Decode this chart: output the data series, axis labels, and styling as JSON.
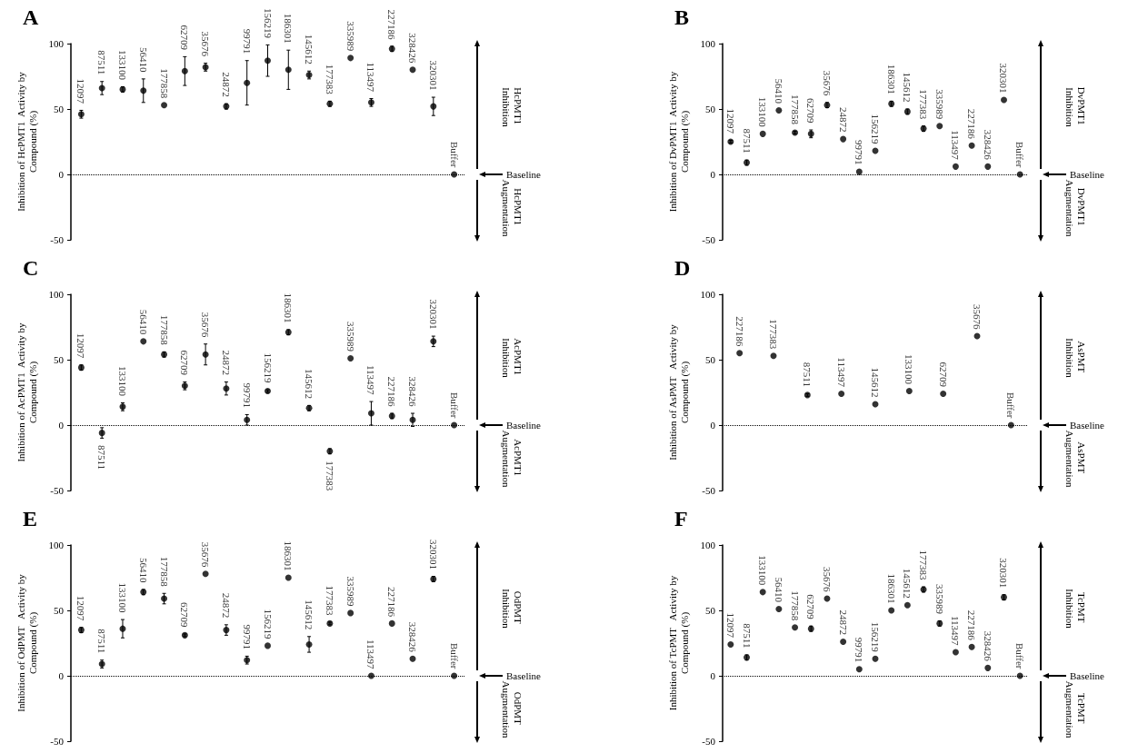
{
  "chart_data": [
    {
      "type": "scatter",
      "title": "A",
      "ylabel": "Inhibition of HcPMT1  Activity by Compound (%)",
      "color": "#000000",
      "marker": "circle",
      "tick_labels": "y",
      "categories": [
        "12097",
        "87511",
        "133100",
        "56410",
        "177858",
        "62709",
        "35676",
        "24872",
        "99791",
        "156219",
        "186301",
        "145612",
        "177383",
        "335989",
        "113497",
        "227186",
        "328426",
        "320301",
        "Buffer"
      ],
      "values": [
        46,
        66,
        65,
        64,
        53,
        79,
        82,
        52,
        70,
        87,
        80,
        76,
        54,
        89,
        55,
        96,
        80,
        52,
        0
      ],
      "errors": [
        3,
        5,
        2,
        9,
        null,
        11,
        3,
        2,
        17,
        12,
        15,
        3,
        2,
        null,
        3,
        2,
        null,
        7,
        null
      ],
      "ylim": [
        -50,
        100
      ],
      "yticks": [
        -50,
        0,
        50,
        100
      ],
      "ref_lines": [
        {
          "axis": "y",
          "value": 0,
          "line_style": "dotted",
          "color": "#000000"
        }
      ],
      "annotations": [
        "Baseline",
        "HcPMT1 Inhibition",
        "HcPMT1 Augmentation"
      ]
    },
    {
      "type": "scatter",
      "title": "B",
      "ylabel": "Inhibition of DvPMT1  Activity by Compound (%)",
      "color": "#000000",
      "marker": "circle",
      "tick_labels": "y",
      "categories": [
        "12097",
        "87511",
        "133100",
        "56410",
        "177858",
        "62709",
        "35676",
        "24872",
        "99791",
        "156219",
        "186301",
        "145612",
        "177383",
        "335989",
        "113497",
        "227186",
        "328426",
        "320301",
        "Buffer"
      ],
      "values": [
        25,
        9,
        31,
        49,
        32,
        31,
        53,
        27,
        2,
        18,
        54,
        48,
        35,
        37,
        6,
        22,
        6,
        57,
        0
      ],
      "errors": [
        1,
        2,
        null,
        null,
        1,
        3,
        2,
        null,
        null,
        null,
        2,
        2,
        2,
        null,
        null,
        null,
        null,
        null,
        null
      ],
      "ylim": [
        -50,
        100
      ],
      "yticks": [
        -50,
        0,
        50,
        100
      ],
      "ref_lines": [
        {
          "axis": "y",
          "value": 0,
          "line_style": "dotted",
          "color": "#000000"
        }
      ],
      "annotations": [
        "Baseline",
        "DvPMT1 Inhibition",
        "DvPMT1 Augmentation"
      ]
    },
    {
      "type": "scatter",
      "title": "C",
      "ylabel": "Inhibition of AcPMT1  Activity by Compound (%)",
      "color": "#000000",
      "marker": "circle",
      "tick_labels": "y",
      "categories": [
        "12097",
        "87511",
        "133100",
        "56410",
        "177858",
        "62709",
        "35676",
        "24872",
        "99791",
        "156219",
        "186301",
        "145612",
        "177383",
        "335989",
        "113497",
        "227186",
        "328426",
        "320301",
        "Buffer"
      ],
      "values": [
        44,
        -6,
        14,
        64,
        54,
        30,
        54,
        28,
        4,
        26,
        71,
        13,
        -20,
        51,
        9,
        7,
        4,
        64,
        0
      ],
      "errors": [
        2,
        4,
        3,
        null,
        2,
        3,
        8,
        5,
        4,
        1,
        2,
        2,
        2,
        null,
        9,
        2,
        5,
        4,
        null
      ],
      "ylim": [
        -50,
        100
      ],
      "yticks": [
        -50,
        0,
        50,
        100
      ],
      "ref_lines": [
        {
          "axis": "y",
          "value": 0,
          "line_style": "dotted",
          "color": "#000000"
        }
      ],
      "annotations": [
        "Baseline",
        "AcPMT1 Inhibition",
        "AcPMT1 Augmentation"
      ]
    },
    {
      "type": "scatter",
      "title": "D",
      "ylabel": "Inhibition of AsPMT   Activity by Compound (%)",
      "color": "#000000",
      "marker": "circle",
      "tick_labels": "y",
      "categories": [
        "227186",
        "177383",
        "87511",
        "113497",
        "145612",
        "133100",
        "62709",
        "35676",
        "Buffer"
      ],
      "values": [
        55,
        53,
        23,
        24,
        16,
        26,
        24,
        68,
        0
      ],
      "errors": [
        null,
        null,
        1,
        null,
        null,
        null,
        null,
        null,
        null
      ],
      "ylim": [
        -50,
        100
      ],
      "yticks": [
        -50,
        0,
        50,
        100
      ],
      "ref_lines": [
        {
          "axis": "y",
          "value": 0,
          "line_style": "dotted",
          "color": "#000000"
        }
      ],
      "annotations": [
        "Baseline",
        "AsPMT Inhibition",
        "AsPMT Augmentation"
      ]
    },
    {
      "type": "scatter",
      "title": "E",
      "ylabel": "Inhibition of OdPMT   Activity by Compound (%)",
      "color": "#000000",
      "marker": "circle",
      "tick_labels": "y",
      "categories": [
        "12097",
        "87511",
        "133100",
        "56410",
        "177858",
        "62709",
        "35676",
        "24872",
        "99791",
        "156219",
        "186301",
        "145612",
        "177383",
        "335989",
        "113497",
        "227186",
        "328426",
        "320301",
        "Buffer"
      ],
      "values": [
        35,
        9,
        36,
        64,
        59,
        31,
        78,
        35,
        12,
        23,
        75,
        24,
        40,
        48,
        0,
        40,
        13,
        74,
        0
      ],
      "errors": [
        2,
        3,
        7,
        2,
        4,
        1,
        null,
        4,
        3,
        null,
        null,
        6,
        1,
        null,
        null,
        null,
        null,
        2,
        null
      ],
      "ylim": [
        -50,
        100
      ],
      "yticks": [
        -50,
        0,
        50,
        100
      ],
      "ref_lines": [
        {
          "axis": "y",
          "value": 0,
          "line_style": "dotted",
          "color": "#000000"
        }
      ],
      "annotations": [
        "Baseline",
        "OdPMT Inhibition",
        "OdPMT Augmentation"
      ]
    },
    {
      "type": "scatter",
      "title": "F",
      "ylabel": "Inhibition of TcPMT   Activity by Compound (%)",
      "color": "#000000",
      "marker": "circle",
      "tick_labels": "y",
      "categories": [
        "12097",
        "87511",
        "133100",
        "56410",
        "177858",
        "62709",
        "35676",
        "24872",
        "99791",
        "156219",
        "186301",
        "145612",
        "177383",
        "335989",
        "113497",
        "227186",
        "328426",
        "320301",
        "Buffer"
      ],
      "values": [
        24,
        14,
        64,
        51,
        37,
        36,
        59,
        26,
        5,
        13,
        50,
        54,
        66,
        40,
        18,
        22,
        6,
        60,
        0
      ],
      "errors": [
        null,
        2,
        null,
        null,
        null,
        2,
        null,
        null,
        null,
        null,
        null,
        null,
        2,
        2,
        null,
        null,
        null,
        2,
        null
      ],
      "ylim": [
        -50,
        100
      ],
      "yticks": [
        -50,
        0,
        50,
        100
      ],
      "ref_lines": [
        {
          "axis": "y",
          "value": 0,
          "line_style": "dotted",
          "color": "#000000"
        }
      ],
      "annotations": [
        "Baseline",
        "TcPMT Inhibition",
        "TcPMT Augmentation"
      ]
    }
  ]
}
